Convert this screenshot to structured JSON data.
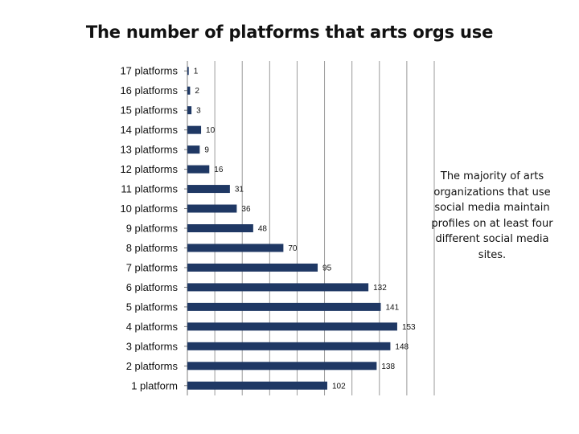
{
  "chart_data": {
    "type": "bar",
    "orientation": "horizontal",
    "title": "The number of platforms that arts orgs use",
    "categories": [
      "17 platforms",
      "16 platforms",
      "15 platforms",
      "14 platforms",
      "13 platforms",
      "12 platforms",
      "11 platforms",
      "10 platforms",
      "9 platforms",
      "8 platforms",
      "7 platforms",
      "6 platforms",
      "5 platforms",
      "4 platforms",
      "3 platforms",
      "2 platforms",
      "1 platform"
    ],
    "values": [
      1,
      2,
      3,
      10,
      9,
      16,
      31,
      36,
      48,
      70,
      95,
      132,
      141,
      153,
      148,
      138,
      102
    ],
    "xlim": [
      0,
      180
    ],
    "grid": true,
    "legend": "none",
    "bar_color": "#1f3864",
    "annotation": "The majority of arts organizations that use social media maintain profiles on at least four different social media sites."
  }
}
